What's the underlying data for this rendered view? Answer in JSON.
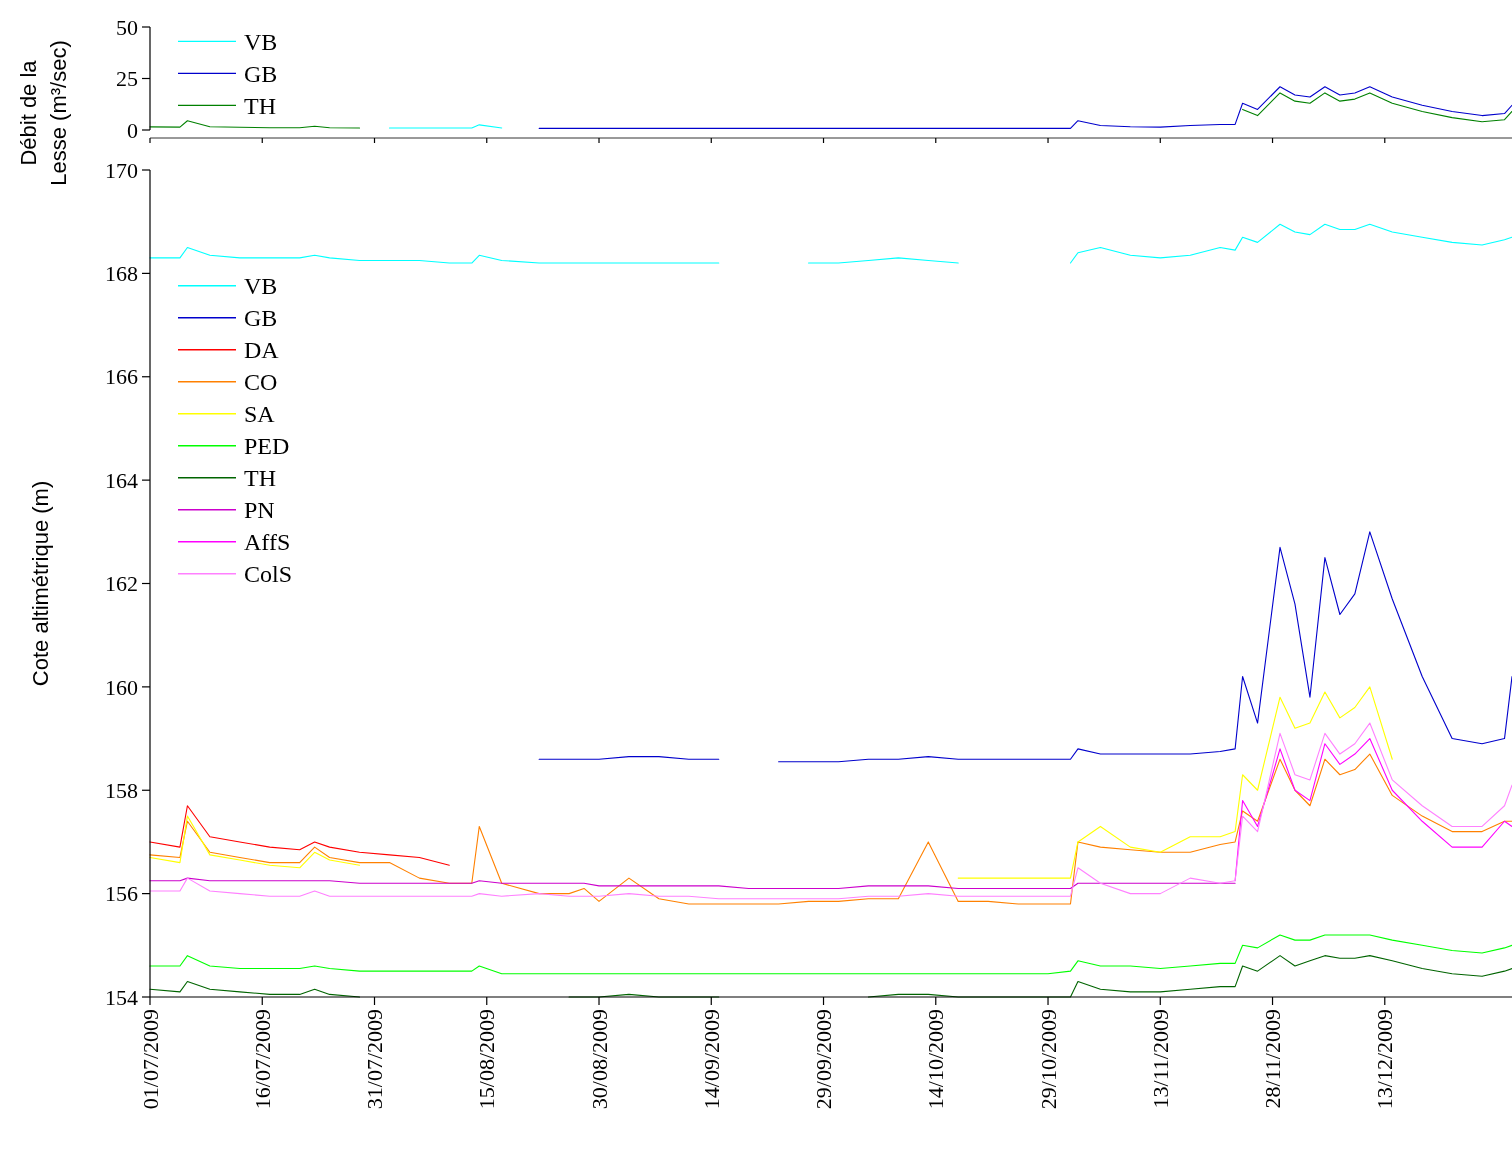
{
  "chart_data": [
    {
      "type": "line",
      "ylabel": "Débit de la Lesse (m³/sec)",
      "xlim": [
        "2009-07-01",
        "2009-12-30"
      ],
      "xticks": [
        {
          "value": "2009-07-01",
          "label": null
        },
        {
          "value": "2009-07-16",
          "label": null
        },
        {
          "value": "2009-07-31",
          "label": null
        },
        {
          "value": "2009-08-15",
          "label": null
        },
        {
          "value": "2009-08-30",
          "label": null
        },
        {
          "value": "2009-09-14",
          "label": null
        },
        {
          "value": "2009-09-29",
          "label": null
        },
        {
          "value": "2009-10-14",
          "label": null
        },
        {
          "value": "2009-10-29",
          "label": null
        },
        {
          "value": "2009-11-13",
          "label": null
        },
        {
          "value": "2009-11-28",
          "label": null
        },
        {
          "value": "2009-12-13",
          "label": null
        }
      ],
      "ylim": [
        0,
        50
      ],
      "yticks": [
        0,
        25,
        50
      ],
      "tick_labels": "y",
      "legend": "top left",
      "line_style": "solid",
      "x": [
        "2009-07-01",
        "2009-07-05",
        "2009-07-06",
        "2009-07-09",
        "2009-07-13",
        "2009-07-17",
        "2009-07-21",
        "2009-07-23",
        "2009-07-25",
        "2009-07-29",
        "2009-08-02",
        "2009-08-06",
        "2009-08-10",
        "2009-08-13",
        "2009-08-14",
        "2009-08-17",
        "2009-08-22",
        "2009-08-26",
        "2009-08-28",
        "2009-08-30",
        "2009-09-03",
        "2009-09-07",
        "2009-09-11",
        "2009-09-15",
        "2009-09-19",
        "2009-09-23",
        "2009-09-27",
        "2009-10-01",
        "2009-10-05",
        "2009-10-09",
        "2009-10-13",
        "2009-10-17",
        "2009-10-21",
        "2009-10-25",
        "2009-10-29",
        "2009-11-01",
        "2009-11-02",
        "2009-11-05",
        "2009-11-09",
        "2009-11-13",
        "2009-11-17",
        "2009-11-21",
        "2009-11-23",
        "2009-11-24",
        "2009-11-26",
        "2009-11-29",
        "2009-12-01",
        "2009-12-03",
        "2009-12-05",
        "2009-12-07",
        "2009-12-09",
        "2009-12-11",
        "2009-12-14",
        "2009-12-18",
        "2009-12-22",
        "2009-12-26",
        "2009-12-29",
        "2009-12-30"
      ],
      "series": [
        {
          "name": "VB",
          "color": "#00ffff",
          "values": [
            null,
            null,
            null,
            null,
            null,
            null,
            null,
            null,
            null,
            null,
            1,
            1,
            1,
            1,
            2.5,
            1,
            null,
            null,
            null,
            null,
            null,
            null,
            null,
            null,
            null,
            null,
            null,
            null,
            null,
            null,
            null,
            null,
            null,
            null,
            null,
            null,
            null,
            null,
            null,
            null,
            null,
            null,
            null,
            null,
            null,
            null,
            null,
            null,
            null,
            null,
            null,
            null,
            null,
            null,
            null,
            null,
            null,
            null
          ]
        },
        {
          "name": "GB",
          "color": "#0000cc",
          "values": [
            null,
            null,
            null,
            null,
            null,
            null,
            null,
            null,
            null,
            null,
            null,
            null,
            null,
            null,
            null,
            null,
            0.8,
            0.8,
            0.8,
            0.8,
            0.8,
            0.8,
            0.8,
            0.8,
            0.8,
            0.8,
            0.8,
            0.8,
            0.8,
            0.8,
            0.8,
            0.8,
            0.8,
            0.8,
            0.8,
            0.8,
            4.5,
            2.2,
            1.6,
            1.4,
            2.2,
            2.7,
            2.7,
            13,
            10,
            21,
            17,
            16,
            21,
            17,
            18,
            21,
            16,
            12,
            9,
            7,
            8,
            12
          ]
        },
        {
          "name": "TH",
          "color": "#008000",
          "values": [
            1.5,
            1.4,
            4.5,
            1.6,
            1.3,
            1.1,
            1.1,
            1.8,
            1.1,
            1,
            null,
            null,
            null,
            null,
            null,
            null,
            null,
            null,
            null,
            null,
            null,
            null,
            null,
            null,
            null,
            null,
            null,
            null,
            null,
            null,
            null,
            null,
            null,
            null,
            null,
            null,
            null,
            null,
            null,
            null,
            null,
            null,
            null,
            10,
            7,
            18,
            14,
            13,
            18,
            14,
            15,
            18,
            13,
            9,
            6,
            4,
            5,
            9
          ]
        }
      ]
    },
    {
      "type": "line",
      "ylabel": "Cote altimétrique (m)",
      "xlim": [
        "2009-07-01",
        "2009-12-30"
      ],
      "ylim": [
        154,
        170
      ],
      "yticks": [
        154,
        156,
        158,
        160,
        162,
        164,
        166,
        168,
        170
      ],
      "legend": "top left",
      "line_style": "solid",
      "xticks": [
        {
          "value": "2009-07-01",
          "label": "01/07/2009"
        },
        {
          "value": "2009-07-16",
          "label": "16/07/2009"
        },
        {
          "value": "2009-07-31",
          "label": "31/07/2009"
        },
        {
          "value": "2009-08-15",
          "label": "15/08/2009"
        },
        {
          "value": "2009-08-30",
          "label": "30/08/2009"
        },
        {
          "value": "2009-09-14",
          "label": "14/09/2009"
        },
        {
          "value": "2009-09-29",
          "label": "29/09/2009"
        },
        {
          "value": "2009-10-14",
          "label": "14/10/2009"
        },
        {
          "value": "2009-10-29",
          "label": "29/10/2009"
        },
        {
          "value": "2009-11-13",
          "label": "13/11/2009"
        },
        {
          "value": "2009-11-28",
          "label": "28/11/2009"
        },
        {
          "value": "2009-12-13",
          "label": "13/12/2009"
        }
      ],
      "x": [
        "2009-07-01",
        "2009-07-05",
        "2009-07-06",
        "2009-07-09",
        "2009-07-13",
        "2009-07-17",
        "2009-07-21",
        "2009-07-23",
        "2009-07-25",
        "2009-07-29",
        "2009-08-02",
        "2009-08-06",
        "2009-08-10",
        "2009-08-13",
        "2009-08-14",
        "2009-08-17",
        "2009-08-22",
        "2009-08-26",
        "2009-08-28",
        "2009-08-30",
        "2009-09-03",
        "2009-09-07",
        "2009-09-11",
        "2009-09-15",
        "2009-09-19",
        "2009-09-23",
        "2009-09-27",
        "2009-10-01",
        "2009-10-05",
        "2009-10-09",
        "2009-10-13",
        "2009-10-17",
        "2009-10-21",
        "2009-10-25",
        "2009-10-29",
        "2009-11-01",
        "2009-11-02",
        "2009-11-05",
        "2009-11-09",
        "2009-11-13",
        "2009-11-17",
        "2009-11-21",
        "2009-11-23",
        "2009-11-24",
        "2009-11-26",
        "2009-11-29",
        "2009-12-01",
        "2009-12-03",
        "2009-12-05",
        "2009-12-07",
        "2009-12-09",
        "2009-12-11",
        "2009-12-14",
        "2009-12-18",
        "2009-12-22",
        "2009-12-26",
        "2009-12-29",
        "2009-12-30"
      ],
      "series": [
        {
          "name": "VB",
          "color": "#00ffff",
          "values": [
            168.3,
            168.3,
            168.5,
            168.35,
            168.3,
            168.3,
            168.3,
            168.35,
            168.3,
            168.25,
            168.25,
            168.25,
            168.2,
            168.2,
            168.35,
            168.25,
            168.2,
            168.2,
            168.2,
            168.2,
            168.2,
            168.2,
            168.2,
            168.2,
            null,
            null,
            168.2,
            168.2,
            168.25,
            168.3,
            168.25,
            168.2,
            null,
            null,
            null,
            168.2,
            168.4,
            168.5,
            168.35,
            168.3,
            168.35,
            168.5,
            168.45,
            168.7,
            168.6,
            168.95,
            168.8,
            168.75,
            168.95,
            168.85,
            168.85,
            168.95,
            168.8,
            168.7,
            168.6,
            168.55,
            168.65,
            168.7
          ]
        },
        {
          "name": "GB",
          "color": "#0000cc",
          "values": [
            null,
            null,
            null,
            null,
            null,
            null,
            null,
            null,
            null,
            null,
            null,
            null,
            null,
            null,
            null,
            null,
            158.6,
            158.6,
            158.6,
            158.6,
            158.65,
            158.65,
            158.6,
            158.6,
            null,
            158.55,
            158.55,
            158.55,
            158.6,
            158.6,
            158.65,
            158.6,
            158.6,
            158.6,
            158.6,
            158.6,
            158.8,
            158.7,
            158.7,
            158.7,
            158.7,
            158.75,
            158.8,
            160.2,
            159.3,
            162.7,
            161.6,
            159.8,
            162.5,
            161.4,
            161.8,
            163.0,
            161.7,
            160.2,
            159.0,
            158.9,
            159.0,
            160.2
          ]
        },
        {
          "name": "DA",
          "color": "#ff0000",
          "values": [
            157.0,
            156.9,
            157.7,
            157.1,
            157.0,
            156.9,
            156.85,
            157.0,
            156.9,
            156.8,
            156.75,
            156.7,
            156.55,
            null,
            null,
            null,
            null,
            null,
            null,
            null,
            null,
            null,
            null,
            null,
            null,
            null,
            null,
            null,
            null,
            null,
            null,
            null,
            null,
            null,
            null,
            null,
            null,
            null,
            null,
            null,
            null,
            null,
            null,
            null,
            null,
            null,
            null,
            null,
            null,
            null,
            null,
            null,
            null,
            null,
            null,
            null,
            null,
            null
          ]
        },
        {
          "name": "CO",
          "color": "#ff8000",
          "values": [
            156.75,
            156.7,
            157.4,
            156.8,
            156.7,
            156.6,
            156.6,
            156.9,
            156.7,
            156.6,
            156.6,
            156.3,
            156.2,
            156.2,
            157.3,
            156.2,
            156.0,
            156.0,
            156.1,
            155.85,
            156.3,
            155.9,
            155.8,
            155.8,
            155.8,
            155.8,
            155.85,
            155.85,
            155.9,
            155.9,
            157.0,
            155.85,
            155.85,
            155.8,
            155.8,
            155.8,
            157.0,
            156.9,
            156.85,
            156.8,
            156.8,
            156.95,
            157.0,
            157.6,
            157.4,
            158.6,
            158.0,
            157.7,
            158.6,
            158.3,
            158.4,
            158.7,
            157.9,
            157.5,
            157.2,
            157.2,
            157.4,
            157.4
          ]
        },
        {
          "name": "SA",
          "color": "#ffff00",
          "values": [
            156.7,
            156.6,
            157.5,
            156.75,
            156.65,
            156.55,
            156.5,
            156.8,
            156.65,
            156.55,
            null,
            null,
            null,
            null,
            null,
            null,
            null,
            null,
            null,
            null,
            null,
            null,
            null,
            null,
            null,
            null,
            null,
            null,
            null,
            null,
            null,
            156.3,
            156.3,
            156.3,
            156.3,
            156.3,
            157.0,
            157.3,
            156.9,
            156.8,
            157.1,
            157.1,
            157.2,
            158.3,
            158.0,
            159.8,
            159.2,
            159.3,
            159.9,
            159.4,
            159.6,
            160.0,
            158.6,
            null,
            null,
            null,
            null,
            null
          ]
        },
        {
          "name": "PED",
          "color": "#00ff00",
          "values": [
            154.6,
            154.6,
            154.8,
            154.6,
            154.55,
            154.55,
            154.55,
            154.6,
            154.55,
            154.5,
            154.5,
            154.5,
            154.5,
            154.5,
            154.6,
            154.45,
            154.45,
            154.45,
            154.45,
            154.45,
            154.45,
            154.45,
            154.45,
            154.45,
            154.45,
            154.45,
            154.45,
            154.45,
            154.45,
            154.45,
            154.45,
            154.45,
            154.45,
            154.45,
            154.45,
            154.5,
            154.7,
            154.6,
            154.6,
            154.55,
            154.6,
            154.65,
            154.65,
            155.0,
            154.95,
            155.2,
            155.1,
            155.1,
            155.2,
            155.2,
            155.2,
            155.2,
            155.1,
            155.0,
            154.9,
            154.85,
            154.95,
            155.0
          ]
        },
        {
          "name": "TH",
          "color": "#006400",
          "values": [
            154.15,
            154.1,
            154.3,
            154.15,
            154.1,
            154.05,
            154.05,
            154.15,
            154.05,
            154.0,
            null,
            null,
            null,
            null,
            null,
            null,
            null,
            154.0,
            154.0,
            154.0,
            154.05,
            154.0,
            154.0,
            154.0,
            null,
            null,
            null,
            null,
            154.0,
            154.05,
            154.05,
            154.0,
            154.0,
            154.0,
            154.0,
            154.0,
            154.3,
            154.15,
            154.1,
            154.1,
            154.15,
            154.2,
            154.2,
            154.6,
            154.5,
            154.8,
            154.6,
            154.7,
            154.8,
            154.75,
            154.75,
            154.8,
            154.7,
            154.55,
            154.45,
            154.4,
            154.5,
            154.55
          ]
        },
        {
          "name": "PN",
          "color": "#cc00cc",
          "values": [
            156.25,
            156.25,
            156.3,
            156.25,
            156.25,
            156.25,
            156.25,
            156.25,
            156.25,
            156.2,
            156.2,
            156.2,
            156.2,
            156.2,
            156.25,
            156.2,
            156.2,
            156.2,
            156.2,
            156.15,
            156.15,
            156.15,
            156.15,
            156.15,
            156.1,
            156.1,
            156.1,
            156.1,
            156.15,
            156.15,
            156.15,
            156.1,
            156.1,
            156.1,
            156.1,
            156.1,
            156.2,
            156.2,
            156.2,
            156.2,
            156.2,
            156.2,
            156.2,
            null,
            null,
            null,
            null,
            null,
            null,
            null,
            null,
            null,
            null,
            null,
            null,
            null,
            null,
            null
          ]
        },
        {
          "name": "AffS",
          "color": "#ff00ff",
          "values": [
            null,
            null,
            null,
            null,
            null,
            null,
            null,
            null,
            null,
            null,
            null,
            null,
            null,
            null,
            null,
            null,
            null,
            null,
            null,
            null,
            null,
            null,
            null,
            null,
            null,
            null,
            null,
            null,
            null,
            null,
            null,
            null,
            null,
            null,
            null,
            null,
            null,
            null,
            null,
            null,
            null,
            null,
            156.25,
            157.8,
            157.3,
            158.8,
            158.0,
            157.8,
            158.9,
            158.5,
            158.7,
            159.0,
            158.0,
            157.4,
            156.9,
            156.9,
            157.4,
            157.3
          ]
        },
        {
          "name": "ColS",
          "color": "#ff80ff",
          "values": [
            156.05,
            156.05,
            156.3,
            156.05,
            156.0,
            155.95,
            155.95,
            156.05,
            155.95,
            155.95,
            155.95,
            155.95,
            155.95,
            155.95,
            156.0,
            155.95,
            156.0,
            155.95,
            155.95,
            155.95,
            156.0,
            155.95,
            155.95,
            155.9,
            155.9,
            155.9,
            155.9,
            155.9,
            155.95,
            155.95,
            156.0,
            155.95,
            155.95,
            155.95,
            155.95,
            155.95,
            156.5,
            156.2,
            156.0,
            156.0,
            156.3,
            156.2,
            156.25,
            157.5,
            157.2,
            159.1,
            158.3,
            158.2,
            159.1,
            158.7,
            158.9,
            159.3,
            158.2,
            157.7,
            157.3,
            157.3,
            157.7,
            158.1
          ]
        }
      ]
    }
  ]
}
